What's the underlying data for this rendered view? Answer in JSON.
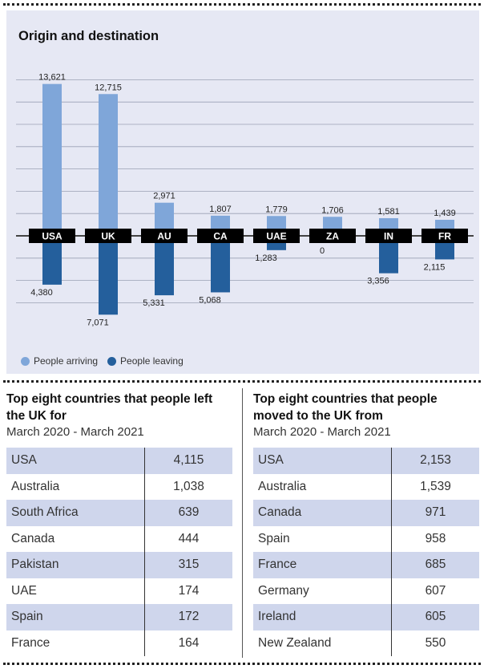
{
  "chart_data": {
    "type": "bar",
    "title": "Origin and destination",
    "categories": [
      "USA",
      "UK",
      "AU",
      "CA",
      "UAE",
      "ZA",
      "IN",
      "FR"
    ],
    "series": [
      {
        "name": "People arriving",
        "values": [
          13621,
          12715,
          2971,
          1807,
          1779,
          1706,
          1581,
          1439
        ],
        "labels": [
          "13,621",
          "12,715",
          "2,971",
          "1,807",
          "1,779",
          "1,706",
          "1,581",
          "1,439"
        ]
      },
      {
        "name": "People leaving",
        "values": [
          4380,
          7071,
          5331,
          5068,
          1283,
          0,
          3356,
          2115
        ],
        "labels": [
          "4,380",
          "7,071",
          "5,331",
          "5,068",
          "1,283",
          "0",
          "3,356",
          "2,115"
        ]
      }
    ],
    "colors": {
      "arriving": "#7fa6d9",
      "leaving": "#245f9c",
      "label_box": "#000000",
      "background": "#e6e8f4"
    },
    "legend": "bottom-left",
    "grid": true
  },
  "left_table": {
    "title": "Top eight countries that people left the UK for",
    "subtitle": "March 2020 - March 2021",
    "rows": [
      {
        "country": "USA",
        "value": "4,115"
      },
      {
        "country": "Australia",
        "value": "1,038"
      },
      {
        "country": "South Africa",
        "value": "639"
      },
      {
        "country": "Canada",
        "value": "444"
      },
      {
        "country": "Pakistan",
        "value": "315"
      },
      {
        "country": "UAE",
        "value": "174"
      },
      {
        "country": "Spain",
        "value": "172"
      },
      {
        "country": "France",
        "value": "164"
      }
    ]
  },
  "right_table": {
    "title": "Top eight countries that people moved to the UK from",
    "subtitle": "March 2020 - March 2021",
    "rows": [
      {
        "country": "USA",
        "value": "2,153"
      },
      {
        "country": "Australia",
        "value": "1,539"
      },
      {
        "country": "Canada",
        "value": "971"
      },
      {
        "country": "Spain",
        "value": "958"
      },
      {
        "country": "France",
        "value": "685"
      },
      {
        "country": "Germany",
        "value": "607"
      },
      {
        "country": "Ireland",
        "value": "605"
      },
      {
        "country": "New Zealand",
        "value": "550"
      }
    ]
  }
}
